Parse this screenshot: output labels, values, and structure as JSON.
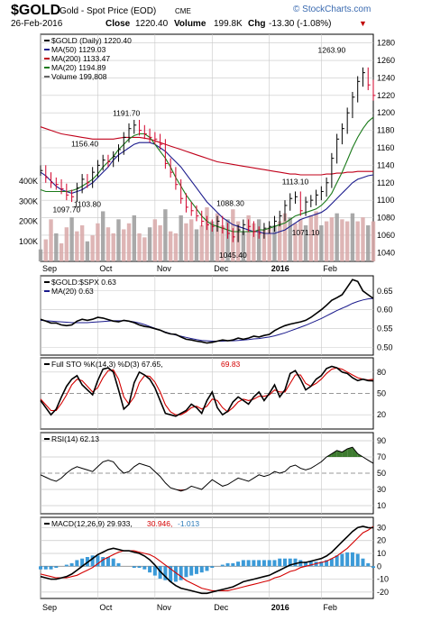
{
  "header": {
    "symbol": "$GOLD",
    "name": "Gold - Spot Price (EOD)",
    "exchange": "CME",
    "date": "26-Feb-2016",
    "close_label": "Close",
    "close": "1220.40",
    "volume_label": "Volume",
    "volume": "199.8K",
    "chg_label": "Chg",
    "chg": "-13.30 (-1.08%)",
    "chg_arrow": "▼",
    "watermark": "© StockCharts.com"
  },
  "colors": {
    "price_up": "#000000",
    "price_down": "#d2002a",
    "ma50": "#1a1a8c",
    "ma200": "#c0001a",
    "ma20": "#1a7a1a",
    "volume_fill": "#d8a8a8",
    "volume_fill_dark": "#9a9a9a",
    "stoch_k": "#000000",
    "stoch_d": "#d40000",
    "rsi_fill_high": "#3d7a2f",
    "rsi_fill_low": "#9a3a3a",
    "macd_hist": "#3b9ad8",
    "grid": "#c8c8c8",
    "frame": "#000000"
  },
  "x_axis": {
    "labels": [
      "Sep",
      "Oct",
      "Nov",
      "Dec",
      "2016",
      "Feb"
    ],
    "label_days": [
      0,
      22,
      44,
      66,
      88,
      108
    ],
    "total_days": 128
  },
  "chart_data": [
    {
      "type": "line",
      "panel": "price",
      "legend": [
        "$GOLD (Daily) 1220.40",
        "MA(50) 1129.03",
        "MA(200) 1133.47",
        "MA(20) 1194.89",
        "Volume 199,808"
      ],
      "y_ticks": [
        1040,
        1060,
        1080,
        1100,
        1120,
        1140,
        1160,
        1180,
        1200,
        1220,
        1240,
        1260,
        1280
      ],
      "ylim": [
        1030,
        1290
      ],
      "volume_ticks": [
        "100K",
        "200K",
        "300K",
        "400K"
      ],
      "volume_tick_values": [
        100,
        200,
        300,
        400
      ],
      "annotations": [
        {
          "label": "1097.70",
          "day": 10,
          "value": 1097.7
        },
        {
          "label": "1103.80",
          "day": 18,
          "value": 1103.8
        },
        {
          "label": "1156.40",
          "day": 17,
          "value": 1156.4
        },
        {
          "label": "1191.70",
          "day": 33,
          "value": 1191.7
        },
        {
          "label": "1088.30",
          "day": 73,
          "value": 1088.3
        },
        {
          "label": "1045.40",
          "day": 74,
          "value": 1045.4
        },
        {
          "label": "1113.10",
          "day": 98,
          "value": 1113.1
        },
        {
          "label": "1071.10",
          "day": 102,
          "value": 1071.1
        },
        {
          "label": "1263.90",
          "day": 112,
          "value": 1263.9
        }
      ],
      "series": [
        {
          "name": "$GOLD (Daily)",
          "kind": "price",
          "x": [
            0,
            2,
            4,
            6,
            8,
            10,
            12,
            14,
            16,
            18,
            20,
            22,
            24,
            26,
            28,
            30,
            32,
            34,
            36,
            38,
            40,
            42,
            44,
            46,
            48,
            50,
            52,
            54,
            56,
            58,
            60,
            62,
            64,
            66,
            68,
            70,
            72,
            74,
            76,
            78,
            80,
            82,
            84,
            86,
            88,
            90,
            92,
            94,
            96,
            98,
            100,
            102,
            104,
            106,
            108,
            110,
            112,
            114,
            116,
            118,
            120,
            122,
            124,
            126,
            128
          ],
          "values": [
            1134,
            1126,
            1120,
            1118,
            1113,
            1106,
            1104,
            1114,
            1124,
            1120,
            1132,
            1140,
            1146,
            1144,
            1150,
            1158,
            1172,
            1182,
            1186,
            1180,
            1176,
            1172,
            1170,
            1164,
            1142,
            1132,
            1118,
            1102,
            1092,
            1088,
            1082,
            1076,
            1072,
            1070,
            1076,
            1068,
            1062,
            1058,
            1066,
            1072,
            1070,
            1064,
            1062,
            1068,
            1070,
            1076,
            1082,
            1094,
            1102,
            1104,
            1088,
            1098,
            1100,
            1106,
            1110,
            1120,
            1148,
            1170,
            1182,
            1200,
            1218,
            1236,
            1246,
            1232,
            1220
          ]
        },
        {
          "name": "MA(50)",
          "values_note": "x as above",
          "values": [
            1132,
            1128,
            1122,
            1116,
            1112,
            1110,
            1108,
            1110,
            1112,
            1116,
            1120,
            1126,
            1132,
            1138,
            1146,
            1152,
            1156,
            1160,
            1164,
            1166,
            1166,
            1166,
            1164,
            1160,
            1156,
            1150,
            1144,
            1138,
            1130,
            1122,
            1114,
            1106,
            1098,
            1092,
            1086,
            1080,
            1076,
            1072,
            1070,
            1068,
            1066,
            1064,
            1064,
            1062,
            1062,
            1062,
            1064,
            1066,
            1070,
            1074,
            1078,
            1080,
            1082,
            1084,
            1086,
            1090,
            1096,
            1102,
            1108,
            1114,
            1120,
            1124,
            1126,
            1128,
            1129
          ]
        },
        {
          "name": "MA(200)",
          "values": [
            1184,
            1182,
            1180,
            1178,
            1176,
            1175,
            1174,
            1173,
            1172,
            1171,
            1170,
            1170,
            1170,
            1170,
            1170,
            1171,
            1172,
            1172,
            1172,
            1172,
            1171,
            1170,
            1168,
            1166,
            1164,
            1162,
            1160,
            1158,
            1156,
            1154,
            1152,
            1150,
            1148,
            1146,
            1144,
            1143,
            1142,
            1141,
            1140,
            1139,
            1138,
            1137,
            1136,
            1135,
            1134,
            1133,
            1132,
            1131,
            1130,
            1130,
            1129,
            1129,
            1129,
            1129,
            1129,
            1130,
            1130,
            1131,
            1131,
            1132,
            1132,
            1133,
            1133,
            1133,
            1133
          ]
        },
        {
          "name": "MA(20)",
          "values": [
            1112,
            1110,
            1110,
            1110,
            1110,
            1110,
            1111,
            1113,
            1116,
            1120,
            1124,
            1130,
            1138,
            1144,
            1150,
            1158,
            1164,
            1170,
            1174,
            1176,
            1176,
            1172,
            1164,
            1156,
            1148,
            1138,
            1126,
            1116,
            1106,
            1098,
            1090,
            1082,
            1076,
            1072,
            1070,
            1068,
            1066,
            1064,
            1064,
            1064,
            1064,
            1064,
            1066,
            1066,
            1068,
            1070,
            1072,
            1074,
            1078,
            1082,
            1084,
            1086,
            1088,
            1090,
            1094,
            1100,
            1108,
            1120,
            1132,
            1146,
            1160,
            1172,
            1182,
            1190,
            1195
          ]
        },
        {
          "name": "Volume",
          "values": [
            60,
            110,
            210,
            140,
            90,
            170,
            220,
            150,
            180,
            100,
            130,
            190,
            250,
            170,
            140,
            210,
            160,
            190,
            230,
            140,
            120,
            170,
            210,
            180,
            260,
            150,
            140,
            230,
            190,
            210,
            160,
            180,
            270,
            200,
            240,
            180,
            210,
            260,
            200,
            150,
            230,
            190,
            210,
            160,
            170,
            180,
            200,
            240,
            220,
            190,
            210,
            180,
            230,
            250,
            180,
            200,
            220,
            240,
            210,
            200,
            240,
            200,
            220,
            180,
            200
          ]
        }
      ]
    },
    {
      "type": "line",
      "panel": "ratio",
      "legend": [
        "$GOLD:$SPX 0.63",
        "MA(20) 0.63"
      ],
      "y_ticks": [
        0.5,
        0.55,
        0.6,
        0.65
      ],
      "y_tick_labels": [
        "0.50",
        "0.55",
        "0.60",
        "0.65"
      ],
      "ylim": [
        0.48,
        0.69
      ],
      "series": [
        {
          "name": "$GOLD:$SPX",
          "values": [
            0.575,
            0.57,
            0.565,
            0.565,
            0.56,
            0.558,
            0.56,
            0.57,
            0.575,
            0.572,
            0.575,
            0.58,
            0.578,
            0.574,
            0.57,
            0.568,
            0.572,
            0.57,
            0.566,
            0.56,
            0.556,
            0.554,
            0.55,
            0.546,
            0.54,
            0.536,
            0.535,
            0.528,
            0.522,
            0.52,
            0.517,
            0.515,
            0.512,
            0.514,
            0.517,
            0.52,
            0.518,
            0.52,
            0.525,
            0.522,
            0.525,
            0.53,
            0.528,
            0.532,
            0.535,
            0.545,
            0.552,
            0.558,
            0.562,
            0.565,
            0.568,
            0.572,
            0.58,
            0.59,
            0.6,
            0.612,
            0.625,
            0.632,
            0.64,
            0.66,
            0.68,
            0.675,
            0.65,
            0.64,
            0.63
          ]
        },
        {
          "name": "MA(20)",
          "values": [
            0.572,
            0.571,
            0.57,
            0.569,
            0.568,
            0.567,
            0.566,
            0.566,
            0.566,
            0.566,
            0.567,
            0.568,
            0.569,
            0.57,
            0.571,
            0.571,
            0.571,
            0.57,
            0.568,
            0.565,
            0.561,
            0.556,
            0.551,
            0.546,
            0.541,
            0.537,
            0.533,
            0.53,
            0.527,
            0.524,
            0.521,
            0.519,
            0.518,
            0.517,
            0.517,
            0.517,
            0.518,
            0.518,
            0.519,
            0.52,
            0.521,
            0.523,
            0.524,
            0.526,
            0.528,
            0.531,
            0.535,
            0.539,
            0.544,
            0.549,
            0.554,
            0.559,
            0.565,
            0.571,
            0.577,
            0.584,
            0.591,
            0.598,
            0.604,
            0.61,
            0.617,
            0.622,
            0.626,
            0.629,
            0.63
          ]
        }
      ]
    },
    {
      "type": "line",
      "panel": "stochastic",
      "legend": [
        "Full STO %K(14,3) %D(3) 67.65,",
        "69.83"
      ],
      "y_ticks": [
        20,
        50,
        80
      ],
      "ylim": [
        0,
        100
      ],
      "series": [
        {
          "name": "%K",
          "values": [
            40,
            30,
            20,
            28,
            45,
            60,
            70,
            75,
            62,
            55,
            48,
            68,
            84,
            86,
            80,
            55,
            28,
            35,
            65,
            80,
            76,
            70,
            58,
            40,
            22,
            20,
            18,
            22,
            26,
            35,
            30,
            22,
            40,
            52,
            30,
            20,
            25,
            38,
            45,
            40,
            35,
            45,
            52,
            40,
            50,
            62,
            45,
            55,
            78,
            82,
            70,
            55,
            60,
            70,
            75,
            85,
            88,
            86,
            80,
            78,
            72,
            68,
            70,
            68,
            67.65
          ]
        },
        {
          "name": "%D",
          "values": [
            42,
            34,
            26,
            26,
            36,
            48,
            62,
            70,
            68,
            60,
            52,
            58,
            72,
            82,
            83,
            70,
            45,
            35,
            45,
            65,
            75,
            74,
            66,
            52,
            34,
            24,
            20,
            20,
            24,
            30,
            32,
            28,
            32,
            42,
            40,
            30,
            24,
            30,
            38,
            42,
            40,
            42,
            46,
            46,
            48,
            55,
            52,
            52,
            64,
            76,
            76,
            64,
            60,
            64,
            70,
            78,
            84,
            86,
            84,
            80,
            76,
            72,
            70,
            69,
            69.83
          ]
        }
      ]
    },
    {
      "type": "line",
      "panel": "rsi",
      "legend": [
        "RSI(14) 62.13"
      ],
      "y_ticks": [
        10,
        30,
        50,
        70,
        90
      ],
      "ylim": [
        0,
        100
      ],
      "series": [
        {
          "name": "RSI(14)",
          "values": [
            48,
            45,
            42,
            40,
            44,
            50,
            55,
            58,
            56,
            54,
            52,
            58,
            64,
            66,
            64,
            56,
            50,
            52,
            58,
            62,
            60,
            58,
            52,
            46,
            38,
            32,
            30,
            28,
            30,
            34,
            32,
            30,
            36,
            42,
            38,
            34,
            36,
            40,
            44,
            42,
            40,
            44,
            48,
            46,
            48,
            52,
            50,
            52,
            58,
            60,
            56,
            54,
            56,
            60,
            64,
            70,
            74,
            78,
            76,
            80,
            82,
            74,
            70,
            66,
            62.13
          ]
        }
      ]
    },
    {
      "type": "line",
      "panel": "macd",
      "legend": [
        "MACD(12,26,9) 29.933,",
        "30.946,",
        "-1.013"
      ],
      "y_ticks": [
        -20,
        -10,
        0,
        10,
        20,
        30
      ],
      "ylim": [
        -25,
        38
      ],
      "series": [
        {
          "name": "MACD",
          "values": [
            -8,
            -9,
            -10,
            -10,
            -9,
            -8,
            -6,
            -3,
            0,
            3,
            6,
            9,
            11,
            13,
            14,
            13,
            12,
            12,
            11,
            10,
            8,
            5,
            1,
            -4,
            -8,
            -12,
            -15,
            -17,
            -18,
            -19,
            -20,
            -21,
            -21,
            -20,
            -19,
            -18,
            -17,
            -16,
            -14,
            -12,
            -11,
            -10,
            -9,
            -8,
            -7,
            -5,
            -3,
            -1,
            1,
            2,
            3,
            3,
            4,
            5,
            6,
            8,
            11,
            15,
            19,
            23,
            27,
            30,
            31,
            30,
            29.933
          ]
        },
        {
          "name": "Signal",
          "values": [
            -6,
            -7,
            -8,
            -9,
            -9,
            -9,
            -8,
            -7,
            -5,
            -3,
            -1,
            2,
            5,
            7,
            9,
            11,
            12,
            12,
            12,
            11,
            10,
            9,
            7,
            4,
            1,
            -2,
            -5,
            -8,
            -11,
            -13,
            -15,
            -17,
            -18,
            -19,
            -19,
            -19,
            -19,
            -18,
            -17,
            -16,
            -15,
            -14,
            -13,
            -12,
            -11,
            -9,
            -8,
            -6,
            -4,
            -3,
            -1,
            0,
            1,
            2,
            3,
            4,
            6,
            8,
            11,
            14,
            18,
            22,
            26,
            28,
            30.946
          ]
        }
      ]
    }
  ]
}
